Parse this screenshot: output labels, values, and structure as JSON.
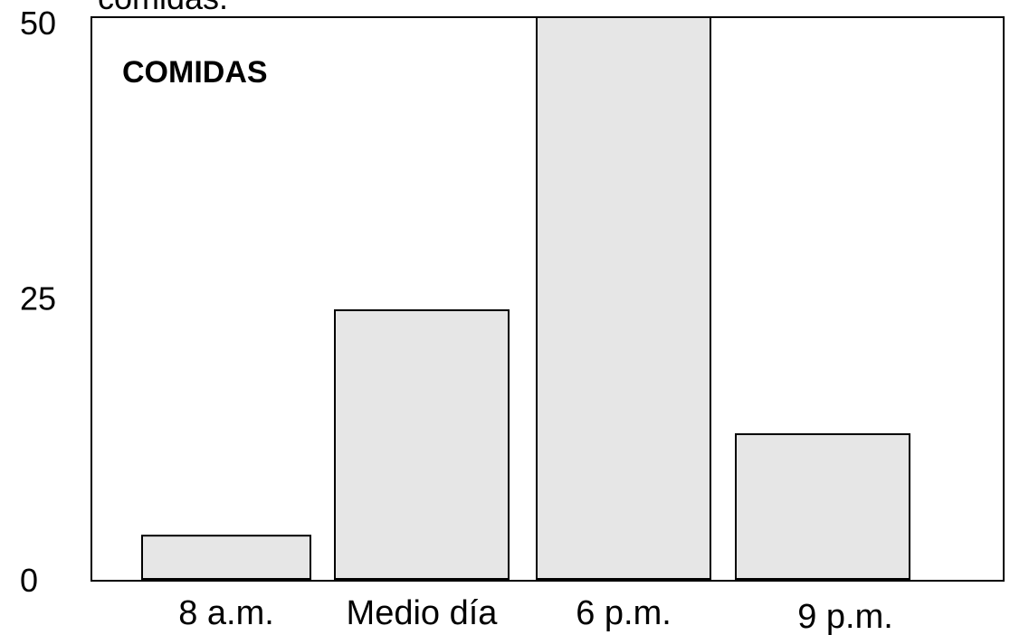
{
  "chart_data": {
    "type": "bar",
    "title": "COMIDAS",
    "ylabel": "comidas.",
    "xlabel": "",
    "categories": [
      "8 a.m.",
      "Medio día",
      "6 p.m.",
      "9 p.m."
    ],
    "values": [
      4,
      24,
      50,
      13
    ],
    "ylim": [
      0,
      50
    ],
    "yticks": [
      "0",
      "25",
      "50"
    ],
    "grid": false,
    "legend": "none",
    "bar_fill": "#e6e6e6",
    "bar_stroke": "#000000",
    "axis_color": "#000000"
  }
}
